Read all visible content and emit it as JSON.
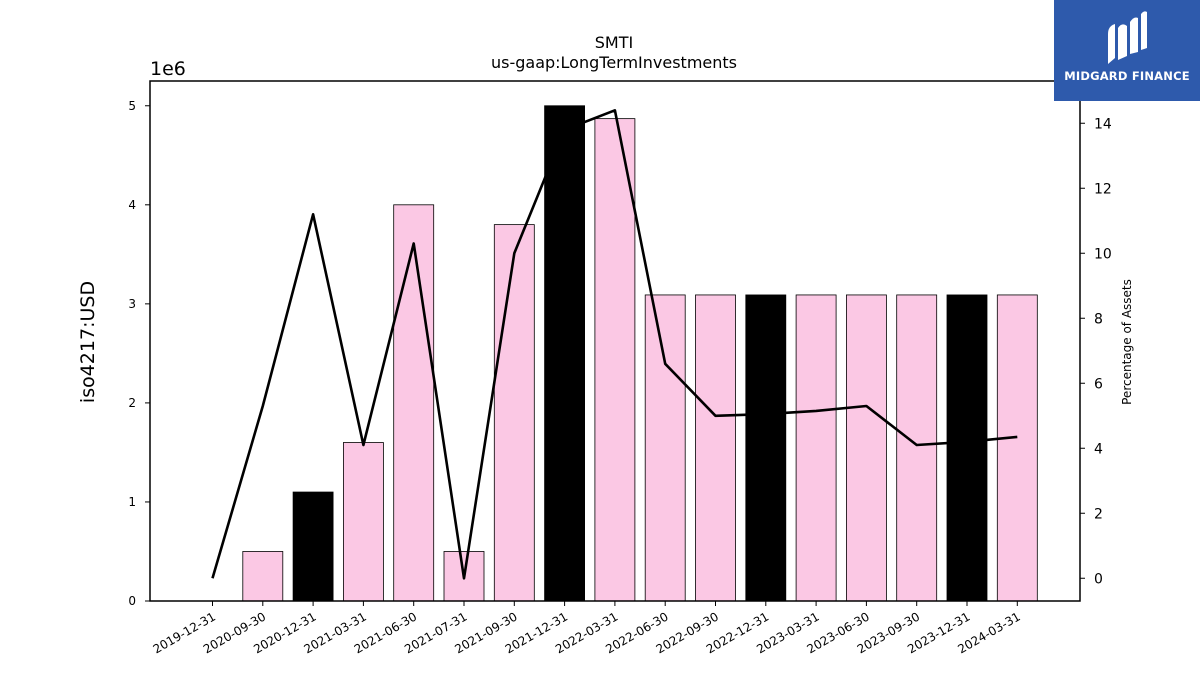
{
  "logo": {
    "text": "MIDGARD FINANCE",
    "icon": "midgard-logo-icon"
  },
  "chart_data": {
    "type": "bar",
    "title": "SMTI",
    "subtitle": "us-gaap:LongTermInvestments",
    "ylabel": "iso4217:USD",
    "y_offset_label": "1e6",
    "y2label": "Percentage of Assets",
    "ylim": [
      0,
      5.25
    ],
    "y2lim": [
      -0.7,
      15.3
    ],
    "yticks": [
      "0",
      "1",
      "2",
      "3",
      "4",
      "5"
    ],
    "y2ticks": [
      "0",
      "2",
      "4",
      "6",
      "8",
      "10",
      "12",
      "14"
    ],
    "categories": [
      "2019-12-31",
      "2020-09-30",
      "2020-12-31",
      "2021-03-31",
      "2021-06-30",
      "2021-07-31",
      "2021-09-30",
      "2021-12-31",
      "2022-03-31",
      "2022-06-30",
      "2022-09-30",
      "2022-12-31",
      "2023-03-31",
      "2023-06-30",
      "2023-09-30",
      "2023-12-31",
      "2024-03-31"
    ],
    "series": [
      {
        "type": "bar",
        "axis": "left",
        "values": [
          0,
          0.5,
          1.1,
          1.6,
          4.0,
          0.5,
          3.8,
          5.0,
          4.87,
          3.09,
          3.09,
          3.09,
          3.09,
          3.09,
          3.09,
          3.09,
          3.09
        ],
        "colors": [
          "#fbc8e4",
          "#fbc8e4",
          "#000000",
          "#fbc8e4",
          "#fbc8e4",
          "#fbc8e4",
          "#fbc8e4",
          "#000000",
          "#fbc8e4",
          "#fbc8e4",
          "#fbc8e4",
          "#000000",
          "#fbc8e4",
          "#fbc8e4",
          "#fbc8e4",
          "#000000",
          "#fbc8e4"
        ]
      },
      {
        "type": "line",
        "axis": "right",
        "color": "#000000",
        "values": [
          0.0,
          5.3,
          11.2,
          4.1,
          10.3,
          0.0,
          10.0,
          13.8,
          14.4,
          6.6,
          5.0,
          5.05,
          5.15,
          5.3,
          4.1,
          4.2,
          4.35
        ]
      }
    ],
    "grid": false,
    "legend": "none"
  }
}
